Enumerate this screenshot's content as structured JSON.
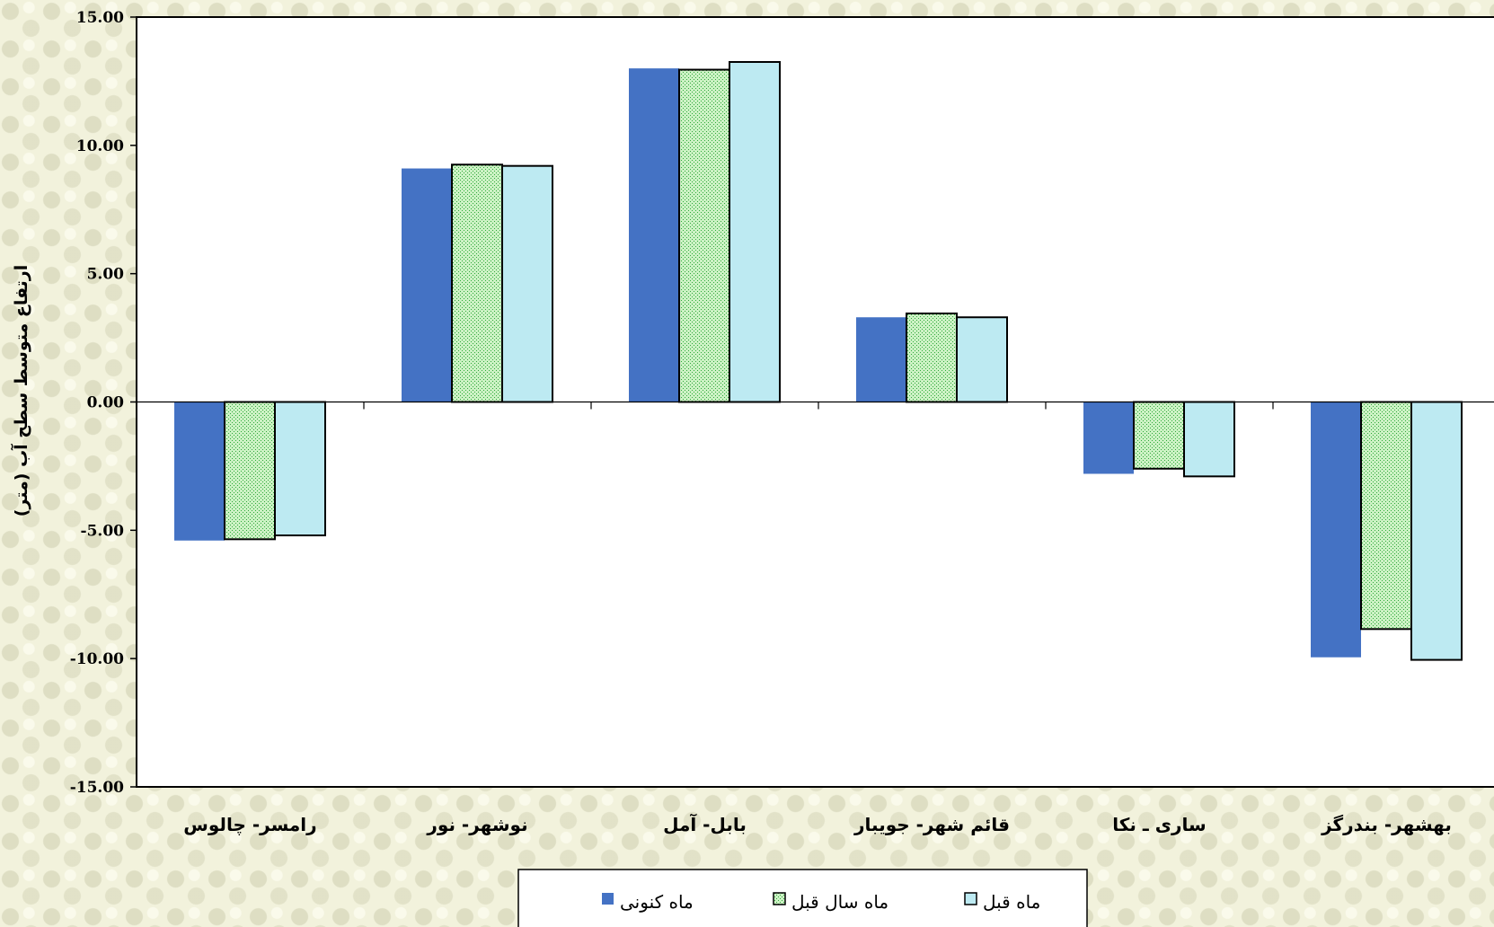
{
  "chart_data": {
    "type": "bar",
    "ylabel": "ارتفاع متوسط سطح آب (متر)",
    "ylim": [
      -15,
      15
    ],
    "y_ticks": [
      "15.00",
      "10.00",
      "5.00",
      "0.00",
      "-5.00",
      "-10.00",
      "-15.00"
    ],
    "categories": [
      "رامسر- چالوس",
      "نوشهر- نور",
      "بابل- آمل",
      "قائم شهر- جویبار",
      "ساری ـ نکا",
      "بهشهر- بندرگز"
    ],
    "series": [
      {
        "name": "ماه کنونی",
        "values": [
          -5.4,
          9.1,
          13.0,
          3.3,
          -2.8,
          -9.95
        ]
      },
      {
        "name": "ماه سال قبل",
        "values": [
          -5.35,
          9.25,
          12.95,
          3.45,
          -2.6,
          -8.85
        ]
      },
      {
        "name": "ماه قبل",
        "values": [
          -5.2,
          9.2,
          13.25,
          3.3,
          -2.9,
          -10.05
        ]
      }
    ],
    "colors": [
      "#4472c4",
      "#ccf2c4",
      "#bdeaf2"
    ],
    "grid": false,
    "legend_position": "bottom"
  }
}
